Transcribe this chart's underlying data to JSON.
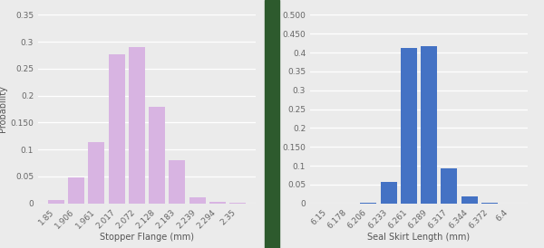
{
  "stopper": {
    "x_labels": [
      "1.85",
      "1.906",
      "1.961",
      "2.017",
      "2.072",
      "2.128",
      "2.183",
      "2.239",
      "2.294",
      "2.35"
    ],
    "values": [
      0.006,
      0.049,
      0.113,
      0.277,
      0.29,
      0.179,
      0.08,
      0.011,
      0.002,
      0.001
    ],
    "bar_color": "#d8b4e2",
    "xlabel": "Stopper Flange (mm)",
    "ylabel": "Probability",
    "ylim": [
      0,
      0.35
    ],
    "yticks": [
      0,
      0.05,
      0.1,
      0.15,
      0.2,
      0.25,
      0.3,
      0.35
    ],
    "ytick_labels": [
      "0",
      "0.05",
      "0.1",
      "0.150",
      "0.2",
      "0.25",
      "0.3",
      "0.35"
    ]
  },
  "seal": {
    "x_labels": [
      "6.15",
      "6.178",
      "6.206",
      "6.233",
      "6.261",
      "6.289",
      "6.317",
      "6.344",
      "6.372",
      "6.4"
    ],
    "values": [
      0.0,
      0.0,
      0.001,
      0.057,
      0.413,
      0.416,
      0.094,
      0.018,
      0.001,
      0.0
    ],
    "bar_color": "#4472c4",
    "xlabel": "Seal Skirt Length (mm)",
    "ylabel": "Probability",
    "ylim": [
      0,
      0.5
    ],
    "yticks": [
      0,
      0.05,
      0.1,
      0.15,
      0.2,
      0.25,
      0.3,
      0.35,
      0.4,
      0.45,
      0.5
    ],
    "ytick_labels": [
      "0",
      "0.05",
      "0.1",
      "0.150",
      "0.2",
      "0.25",
      "0.3",
      "0.35",
      "0.4",
      "0.450",
      "0.500"
    ]
  },
  "bg_color": "#ebebeb",
  "divider_color": "#2d5a2d",
  "label_fontsize": 7,
  "tick_fontsize": 6.5
}
